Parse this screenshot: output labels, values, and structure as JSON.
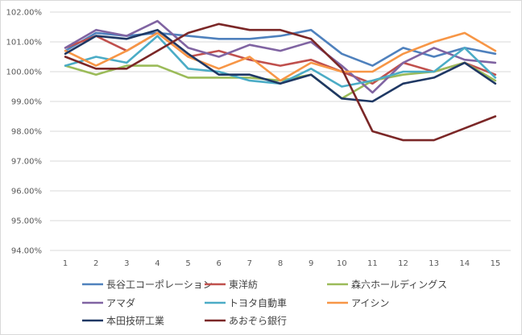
{
  "chart_data": {
    "type": "line",
    "x": [
      1,
      2,
      3,
      4,
      5,
      6,
      7,
      8,
      9,
      10,
      11,
      12,
      13,
      14,
      15
    ],
    "ylim": [
      94.0,
      102.0
    ],
    "yticks": [
      "94.00%",
      "95.00%",
      "96.00%",
      "97.00%",
      "98.00%",
      "99.00%",
      "100.00%",
      "101.00%",
      "102.00%"
    ],
    "grid": "horizontal",
    "legend_position": "bottom",
    "series": [
      {
        "name": "長谷工コーポレーション",
        "color": "#4f81bd",
        "values": [
          100.7,
          101.3,
          101.2,
          101.3,
          101.2,
          101.1,
          101.1,
          101.2,
          101.4,
          100.6,
          100.2,
          100.8,
          100.5,
          100.8,
          100.6
        ]
      },
      {
        "name": "東洋紡",
        "color": "#c0504d",
        "values": [
          100.8,
          101.2,
          100.7,
          101.3,
          100.5,
          100.7,
          100.4,
          100.2,
          100.4,
          100.0,
          99.6,
          100.3,
          100.0,
          100.3,
          99.9
        ]
      },
      {
        "name": "森六ホールディングス",
        "color": "#9bbb59",
        "values": [
          100.2,
          99.9,
          100.2,
          100.2,
          99.8,
          99.8,
          99.8,
          99.7,
          99.9,
          99.1,
          99.7,
          99.9,
          100.0,
          100.3,
          99.7
        ]
      },
      {
        "name": "アマダ",
        "color": "#8064a2",
        "values": [
          100.8,
          101.4,
          101.2,
          101.7,
          100.8,
          100.5,
          100.9,
          100.7,
          101.0,
          100.2,
          99.3,
          100.3,
          100.8,
          100.4,
          100.3
        ]
      },
      {
        "name": "トヨタ自動車",
        "color": "#4bacc6",
        "values": [
          100.2,
          100.5,
          100.3,
          101.2,
          100.1,
          100.0,
          99.7,
          99.6,
          100.1,
          99.5,
          99.7,
          100.0,
          100.0,
          100.8,
          99.8
        ]
      },
      {
        "name": "アイシン",
        "color": "#f79646",
        "values": [
          100.7,
          100.2,
          100.7,
          101.3,
          100.5,
          100.1,
          100.5,
          99.7,
          100.3,
          100.0,
          100.0,
          100.6,
          101.0,
          101.3,
          100.7
        ]
      },
      {
        "name": "本田技研工業",
        "color": "#1f3864",
        "values": [
          100.6,
          101.2,
          101.1,
          101.4,
          100.6,
          99.9,
          99.9,
          99.6,
          99.9,
          99.1,
          99.0,
          99.6,
          99.8,
          100.3,
          99.6
        ]
      },
      {
        "name": "あおぞら銀行",
        "color": "#7b2727",
        "values": [
          100.5,
          100.1,
          100.1,
          100.7,
          101.3,
          101.6,
          101.4,
          101.4,
          101.1,
          100.1,
          98.0,
          97.7,
          97.7,
          98.1,
          98.5
        ]
      }
    ]
  }
}
